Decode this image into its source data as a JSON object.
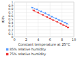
{
  "chart_data": {
    "type": "scatter",
    "title": "",
    "xlabel": "Constant temperature at 25°C",
    "ylabel": "σ/σ₀",
    "xlim": [
      0,
      10
    ],
    "ylim": [
      0,
      1
    ],
    "xticks": [
      0,
      2,
      4,
      6,
      8,
      10
    ],
    "yticks": [
      0,
      0.1,
      0.2,
      0.3,
      0.4,
      0.5,
      0.6,
      0.7,
      0.8,
      0.9,
      1
    ],
    "grid": true,
    "legend": "lower-left",
    "series": [
      {
        "name": "85% relative humidity",
        "color": "#5599ff",
        "x": [
          3.0,
          3.8,
          4.5,
          5.2,
          5.8,
          6.3,
          7.0,
          7.5,
          8.0,
          8.5,
          8.8
        ],
        "values": [
          0.84,
          0.79,
          0.73,
          0.68,
          0.63,
          0.58,
          0.53,
          0.48,
          0.45,
          0.41,
          0.38
        ],
        "fit_x": [
          2.8,
          9.1
        ],
        "fit_values": [
          0.86,
          0.36
        ]
      },
      {
        "name": "75% relative humidity",
        "color": "#ee3333",
        "x": [
          3.3,
          4.0,
          4.8,
          5.5,
          6.0,
          6.5,
          7.2,
          7.8,
          8.2,
          8.7,
          9.0
        ],
        "values": [
          0.76,
          0.7,
          0.63,
          0.57,
          0.53,
          0.48,
          0.43,
          0.38,
          0.34,
          0.3,
          0.27
        ],
        "fit_x": [
          3.0,
          9.2
        ],
        "fit_values": [
          0.77,
          0.26
        ]
      }
    ]
  }
}
